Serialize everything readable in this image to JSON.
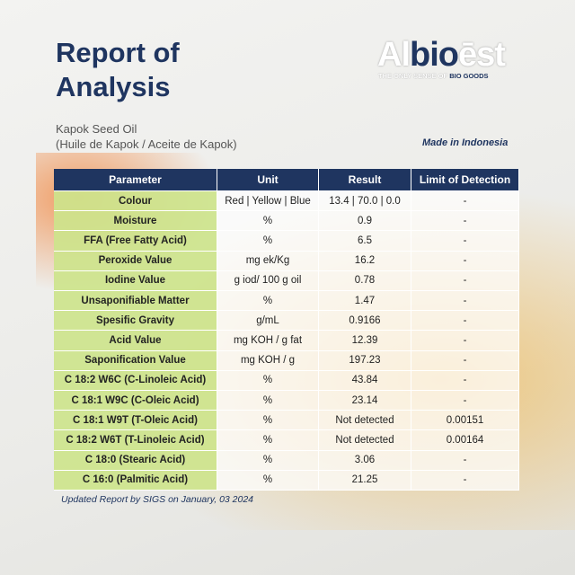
{
  "header": {
    "title_lines": [
      "Report of",
      "Analysis"
    ],
    "logo": {
      "parts": [
        "Al",
        "bio",
        "ēst"
      ],
      "tagline_parts": [
        "THE ONLY SENSE OF ",
        "BIO GOODS"
      ]
    },
    "subtitle_lines": [
      "Kapok Seed Oil",
      "(Huile de Kapok / Aceite de Kapok)"
    ],
    "origin": "Made in Indonesia"
  },
  "table": {
    "columns": [
      "Parameter",
      "Unit",
      "Result",
      "Limit of Detection"
    ],
    "rows": [
      [
        "Colour",
        "Red | Yellow | Blue",
        "13.4 | 70.0 | 0.0",
        "-"
      ],
      [
        "Moisture",
        "%",
        "0.9",
        "-"
      ],
      [
        "FFA (Free Fatty Acid)",
        "%",
        "6.5",
        "-"
      ],
      [
        "Peroxide Value",
        "mg ek/Kg",
        "16.2",
        "-"
      ],
      [
        "Iodine Value",
        "g iod/ 100 g oil",
        "0.78",
        "-"
      ],
      [
        "Unsaponifiable  Matter",
        "%",
        "1.47",
        "-"
      ],
      [
        "Spesific Gravity",
        "g/mL",
        "0.9166",
        "-"
      ],
      [
        "Acid Value",
        "mg KOH / g fat",
        "12.39",
        "-"
      ],
      [
        "Saponification Value",
        "mg KOH / g",
        "197.23",
        "-"
      ],
      [
        "C 18:2 W6C (C-Linoleic Acid)",
        "%",
        "43.84",
        "-"
      ],
      [
        "C 18:1 W9C (C-Oleic Acid)",
        "%",
        "23.14",
        "-"
      ],
      [
        "C 18:1 W9T (T-Oleic Acid)",
        "%",
        "Not detected",
        "0.00151"
      ],
      [
        "C 18:2 W6T (T-Linoleic Acid)",
        "%",
        "Not detected",
        "0.00164"
      ],
      [
        "C 18:0 (Stearic Acid)",
        "%",
        "3.06",
        "-"
      ],
      [
        "C 16:0 (Palmitic Acid)",
        "%",
        "21.25",
        "-"
      ]
    ]
  },
  "footer": "Updated Report by SIGS on January, 03 2024"
}
